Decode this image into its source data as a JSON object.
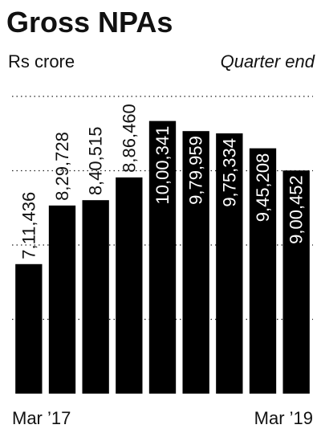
{
  "chart_data": {
    "type": "bar",
    "title": "Gross NPAs",
    "subtitle": "Rs crore",
    "annotation": "Quarter end",
    "categories": [
      "Mar ’17",
      null,
      null,
      null,
      null,
      null,
      null,
      null,
      "Mar ’19"
    ],
    "values": [
      711436,
      829728,
      840515,
      886460,
      1000341,
      979959,
      975334,
      945208,
      900452
    ],
    "value_labels": [
      "7,11,436",
      "8,29,728",
      "8,40,515",
      "8,86,460",
      "10,00,341",
      "9,79,959",
      "9,75,334",
      "9,45,208",
      "9,00,452"
    ],
    "color": "#000000",
    "ylim": [
      450000,
      1050000
    ],
    "yticks": [
      600000,
      750000,
      900000,
      1050000
    ],
    "grid": true
  }
}
